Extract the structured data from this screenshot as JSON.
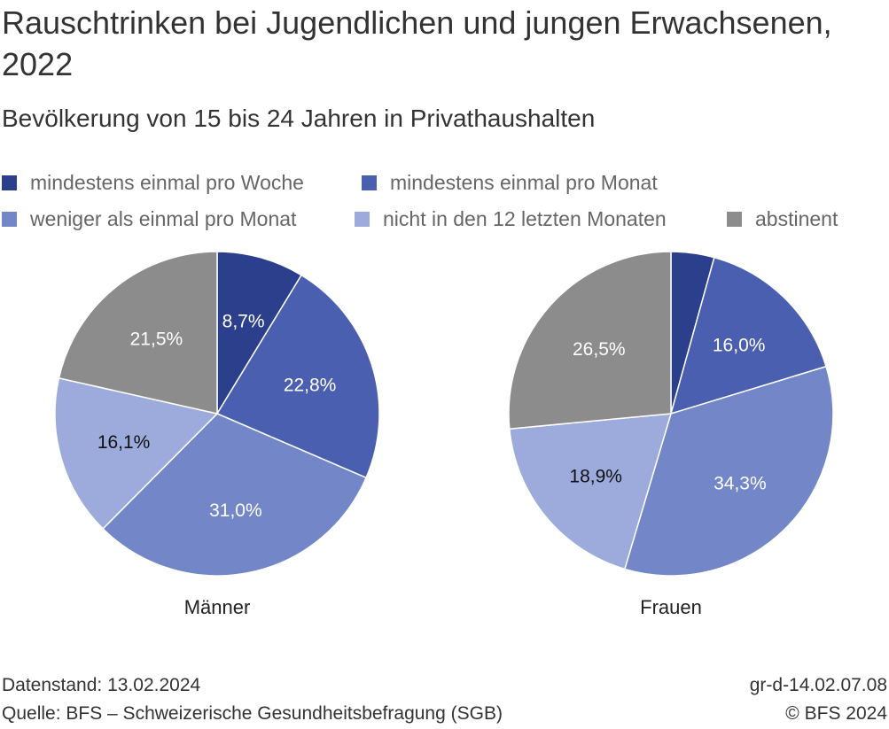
{
  "title": "Rauschtrinken bei Jugendlichen und jungen Erwachsenen, 2022",
  "subtitle": "Bevölkerung von 15 bis 24 Jahren in Privathaushalten",
  "legend": [
    {
      "label": "mindestens einmal pro Woche",
      "color": "#2b3f8c"
    },
    {
      "label": "mindestens einmal pro Monat",
      "color": "#4a5fb0"
    },
    {
      "label": "weniger als einmal pro Monat",
      "color": "#7286c8"
    },
    {
      "label": "nicht in den 12 letzten Monaten",
      "color": "#9cabdc"
    },
    {
      "label": "abstinent",
      "color": "#8c8c8c"
    }
  ],
  "chart_data": {
    "type": "pie",
    "categories": [
      "mindestens einmal pro Woche",
      "mindestens einmal pro Monat",
      "weniger als einmal pro Monat",
      "nicht in den 12 letzten Monaten",
      "abstinent"
    ],
    "series": [
      {
        "name": "Männer",
        "values": [
          8.7,
          22.8,
          31.0,
          16.1,
          21.5
        ],
        "labels": [
          "8,7%",
          "22,8%",
          "31,0%",
          "16,1%",
          "21,5%"
        ]
      },
      {
        "name": "Frauen",
        "values": [
          4.3,
          16.0,
          34.3,
          18.9,
          26.5
        ],
        "labels": [
          "",
          "16,0%",
          "34,3%",
          "18,9%",
          "26,5%"
        ]
      }
    ],
    "colors": [
      "#2b3f8c",
      "#4a5fb0",
      "#7286c8",
      "#9cabdc",
      "#8c8c8c"
    ],
    "label_colors": [
      "#ffffff",
      "#ffffff",
      "#ffffff",
      "#111111",
      "#ffffff"
    ]
  },
  "footer": {
    "date": "Datenstand: 13.02.2024",
    "source": "Quelle: BFS – Schweizerische Gesundheitsbefragung (SGB)",
    "code": "gr-d-14.02.07.08",
    "copyright": "© BFS 2024"
  }
}
